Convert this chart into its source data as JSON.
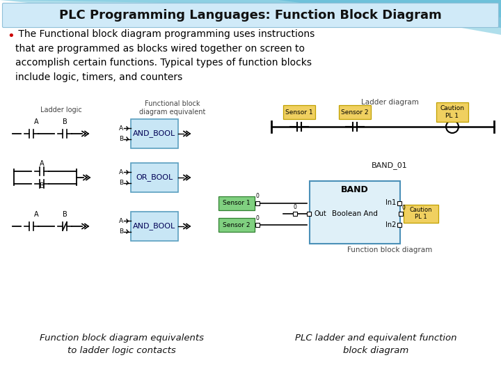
{
  "title": "PLC Programming Languages: Function Block Diagram",
  "bullet_text": " The Functional block diagram programming uses instructions\nthat are programmed as blocks wired together on screen to\naccomplish certain functions. Typical types of function blocks\ninclude logic, timers, and counters",
  "caption_left": "Function block diagram equivalents\nto ladder logic contacts",
  "caption_right": "PLC ladder and equivalent function\nblock diagram",
  "block_color": "#c8e6f5",
  "block_edge": "#5a9fc0",
  "sensor_color": "#f0d060",
  "sensor_edge": "#c0a000",
  "green_color": "#80d080",
  "green_edge": "#308030",
  "caution_color": "#f0d060",
  "bg_top_color": "#7cc8e0",
  "bg_mid_color": "#a0d8ec",
  "bullet_color": "#cc0000"
}
